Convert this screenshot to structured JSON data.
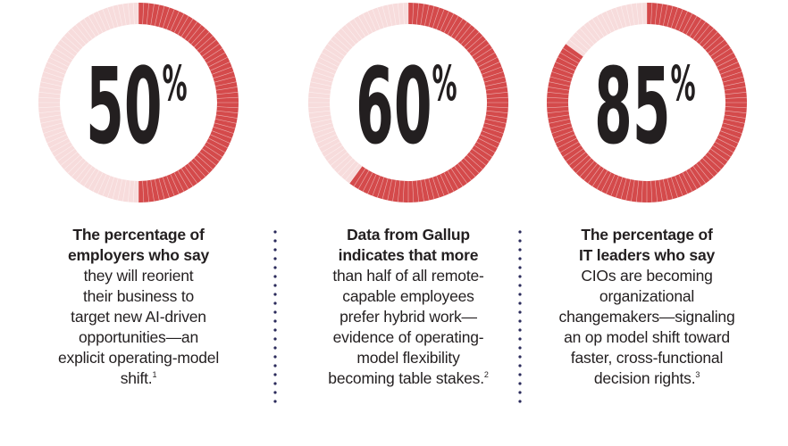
{
  "colors": {
    "filled": "#d44a4b",
    "remaining": "#f7dcdc",
    "tick": "#ffffff",
    "text": "#231f20",
    "divider": "#2a2a5a"
  },
  "chart_data": [
    {
      "type": "pie",
      "value": 50,
      "label": "50%",
      "caption_bold": [
        "The percentage of",
        "employers who say"
      ],
      "caption": [
        "they will reorient",
        "their business to",
        "target new AI-driven",
        "opportunities—an",
        "explicit operating-model",
        "shift."
      ],
      "footnote": "1"
    },
    {
      "type": "pie",
      "value": 60,
      "label": "60%",
      "caption_bold": [
        "Data from Gallup",
        "indicates that more"
      ],
      "caption": [
        "than half of all remote-",
        "capable employees",
        "prefer hybrid work—",
        "evidence of operating-",
        "model flexibility",
        "becoming table stakes."
      ],
      "footnote": "2"
    },
    {
      "type": "pie",
      "value": 85,
      "label": "85%",
      "caption_bold": [
        "The percentage of",
        "IT leaders who say"
      ],
      "caption": [
        "CIOs are becoming",
        "organizational",
        "changemakers—signaling",
        "an op model shift toward",
        "faster, cross-functional",
        "decision rights."
      ],
      "footnote": "3"
    }
  ]
}
